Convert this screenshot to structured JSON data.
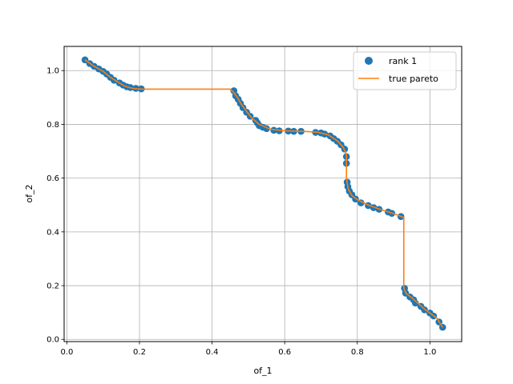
{
  "chart_data": {
    "type": "scatter",
    "xlabel": "of_1",
    "ylabel": "of_2",
    "xlim": [
      -0.0075,
      1.0875
    ],
    "ylim": [
      -0.0082,
      1.09
    ],
    "xticks": [
      0.0,
      0.2,
      0.4,
      0.6,
      0.8,
      1.0
    ],
    "xtick_labels": [
      "0.0",
      "0.2",
      "0.4",
      "0.6",
      "0.8",
      "1.0"
    ],
    "yticks": [
      0.0,
      0.2,
      0.4,
      0.6,
      0.8,
      1.0
    ],
    "ytick_labels": [
      "0.0",
      "0.2",
      "0.4",
      "0.6",
      "0.8",
      "1.0"
    ],
    "grid": true,
    "legend_position": "top-right",
    "series": [
      {
        "name": "rank 1",
        "kind": "scatter",
        "color": "#1f77b4",
        "points": [
          [
            0.05,
            1.04
          ],
          [
            0.063,
            1.026
          ],
          [
            0.075,
            1.016
          ],
          [
            0.088,
            1.006
          ],
          [
            0.1,
            0.997
          ],
          [
            0.11,
            0.987
          ],
          [
            0.12,
            0.975
          ],
          [
            0.13,
            0.964
          ],
          [
            0.145,
            0.954
          ],
          [
            0.155,
            0.946
          ],
          [
            0.165,
            0.94
          ],
          [
            0.175,
            0.937
          ],
          [
            0.19,
            0.934
          ],
          [
            0.205,
            0.932
          ],
          [
            0.46,
            0.925
          ],
          [
            0.465,
            0.906
          ],
          [
            0.472,
            0.893
          ],
          [
            0.478,
            0.878
          ],
          [
            0.485,
            0.862
          ],
          [
            0.495,
            0.845
          ],
          [
            0.505,
            0.83
          ],
          [
            0.52,
            0.815
          ],
          [
            0.525,
            0.805
          ],
          [
            0.53,
            0.795
          ],
          [
            0.54,
            0.789
          ],
          [
            0.55,
            0.784
          ],
          [
            0.57,
            0.778
          ],
          [
            0.585,
            0.776
          ],
          [
            0.61,
            0.775
          ],
          [
            0.625,
            0.774
          ],
          [
            0.645,
            0.774
          ],
          [
            0.685,
            0.77
          ],
          [
            0.7,
            0.768
          ],
          [
            0.71,
            0.764
          ],
          [
            0.725,
            0.757
          ],
          [
            0.735,
            0.747
          ],
          [
            0.745,
            0.737
          ],
          [
            0.755,
            0.724
          ],
          [
            0.765,
            0.708
          ],
          [
            0.77,
            0.68
          ],
          [
            0.77,
            0.655
          ],
          [
            0.772,
            0.585
          ],
          [
            0.774,
            0.568
          ],
          [
            0.778,
            0.552
          ],
          [
            0.785,
            0.538
          ],
          [
            0.795,
            0.522
          ],
          [
            0.81,
            0.508
          ],
          [
            0.83,
            0.498
          ],
          [
            0.845,
            0.49
          ],
          [
            0.86,
            0.484
          ],
          [
            0.885,
            0.474
          ],
          [
            0.895,
            0.469
          ],
          [
            0.92,
            0.457
          ],
          [
            0.93,
            0.19
          ],
          [
            0.933,
            0.172
          ],
          [
            0.945,
            0.158
          ],
          [
            0.955,
            0.147
          ],
          [
            0.96,
            0.135
          ],
          [
            0.975,
            0.123
          ],
          [
            0.985,
            0.11
          ],
          [
            1.0,
            0.098
          ],
          [
            1.01,
            0.087
          ],
          [
            1.025,
            0.065
          ],
          [
            1.035,
            0.045
          ]
        ]
      },
      {
        "name": "true pareto",
        "kind": "line",
        "color": "#ff7f0e",
        "points": [
          [
            0.05,
            1.04
          ],
          [
            0.075,
            1.016
          ],
          [
            0.1,
            0.997
          ],
          [
            0.12,
            0.975
          ],
          [
            0.14,
            0.958
          ],
          [
            0.16,
            0.942
          ],
          [
            0.175,
            0.936
          ],
          [
            0.19,
            0.932
          ],
          [
            0.21,
            0.931
          ],
          [
            0.45,
            0.931
          ],
          [
            0.46,
            0.918
          ],
          [
            0.47,
            0.9
          ],
          [
            0.48,
            0.876
          ],
          [
            0.495,
            0.848
          ],
          [
            0.51,
            0.823
          ],
          [
            0.53,
            0.8
          ],
          [
            0.56,
            0.782
          ],
          [
            0.6,
            0.776
          ],
          [
            0.65,
            0.774
          ],
          [
            0.69,
            0.771
          ],
          [
            0.72,
            0.761
          ],
          [
            0.745,
            0.739
          ],
          [
            0.76,
            0.717
          ],
          [
            0.77,
            0.69
          ],
          [
            0.77,
            0.6
          ],
          [
            0.775,
            0.56
          ],
          [
            0.785,
            0.535
          ],
          [
            0.8,
            0.52
          ],
          [
            0.83,
            0.5
          ],
          [
            0.86,
            0.485
          ],
          [
            0.9,
            0.468
          ],
          [
            0.928,
            0.454
          ],
          [
            0.928,
            0.19
          ],
          [
            0.935,
            0.17
          ],
          [
            0.95,
            0.155
          ],
          [
            0.965,
            0.137
          ],
          [
            0.985,
            0.113
          ],
          [
            1.005,
            0.093
          ],
          [
            1.02,
            0.078
          ],
          [
            1.035,
            0.045
          ]
        ]
      }
    ]
  }
}
